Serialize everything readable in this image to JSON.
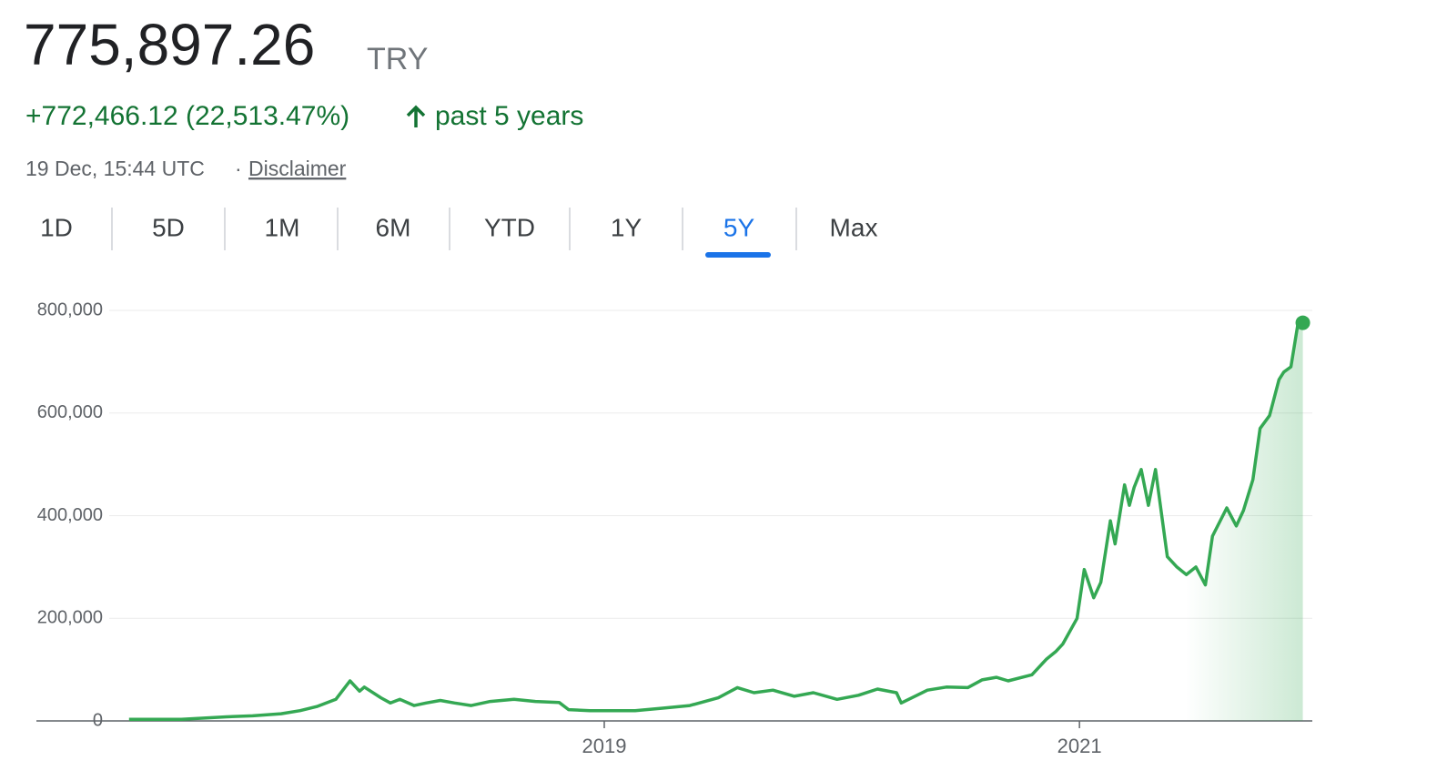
{
  "header": {
    "price": "775,897.26",
    "currency": "TRY",
    "change": "+772,466.12 (22,513.47%)",
    "period": "past 5 years",
    "timestamp": "19 Dec, 15:44 UTC",
    "separator": "·",
    "disclaimer": "Disclaimer"
  },
  "tabs": [
    "1D",
    "5D",
    "1M",
    "6M",
    "YTD",
    "1Y",
    "5Y",
    "Max"
  ],
  "selected_tab": 6,
  "chart_data": {
    "type": "line",
    "color": "#34a853",
    "x": [
      2017.0,
      2017.22,
      2017.41,
      2017.52,
      2017.64,
      2017.72,
      2017.79,
      2017.87,
      2017.93,
      2017.97,
      2017.99,
      2018.06,
      2018.1,
      2018.14,
      2018.2,
      2018.25,
      2018.31,
      2018.37,
      2018.44,
      2018.52,
      2018.62,
      2018.71,
      2018.81,
      2018.85,
      2018.94,
      2019.13,
      2019.25,
      2019.36,
      2019.48,
      2019.56,
      2019.63,
      2019.71,
      2019.8,
      2019.88,
      2019.98,
      2020.07,
      2020.15,
      2020.23,
      2020.25,
      2020.36,
      2020.44,
      2020.53,
      2020.59,
      2020.65,
      2020.7,
      2020.8,
      2020.86,
      2020.9,
      2020.93,
      2020.99,
      2021.02,
      2021.06,
      2021.09,
      2021.13,
      2021.15,
      2021.19,
      2021.21,
      2021.23,
      2021.26,
      2021.29,
      2021.32,
      2021.37,
      2021.41,
      2021.45,
      2021.49,
      2021.53,
      2021.56,
      2021.62,
      2021.66,
      2021.69,
      2021.73,
      2021.76,
      2021.8,
      2021.84,
      2021.86,
      2021.89,
      2021.92,
      2021.94
    ],
    "values": [
      3000,
      3000,
      8000,
      10000,
      14000,
      20000,
      28000,
      42000,
      78000,
      58000,
      66000,
      45000,
      35000,
      42000,
      30000,
      35000,
      40000,
      35000,
      30000,
      38000,
      42000,
      38000,
      36000,
      22000,
      20000,
      20000,
      25000,
      30000,
      45000,
      65000,
      55000,
      60000,
      48000,
      55000,
      42000,
      50000,
      62000,
      55000,
      35000,
      60000,
      66000,
      65000,
      80000,
      85000,
      78000,
      90000,
      120000,
      135000,
      150000,
      200000,
      295000,
      240000,
      270000,
      390000,
      345000,
      460000,
      420000,
      455000,
      490000,
      420000,
      490000,
      320000,
      300000,
      285000,
      300000,
      265000,
      360000,
      415000,
      380000,
      410000,
      470000,
      570000,
      595000,
      665000,
      680000,
      690000,
      775000,
      775897.26
    ],
    "xlim": [
      2016.61,
      2021.98
    ],
    "xticks": [
      2019,
      2021
    ],
    "ylim": [
      0,
      800000
    ],
    "yticks": [
      {
        "value": 0,
        "label": "0"
      },
      {
        "value": 200000,
        "label": "200,000"
      },
      {
        "value": 400000,
        "label": "400,000"
      },
      {
        "value": 600000,
        "label": "600,000"
      },
      {
        "value": 800000,
        "label": "800,000"
      }
    ],
    "grid": true
  }
}
